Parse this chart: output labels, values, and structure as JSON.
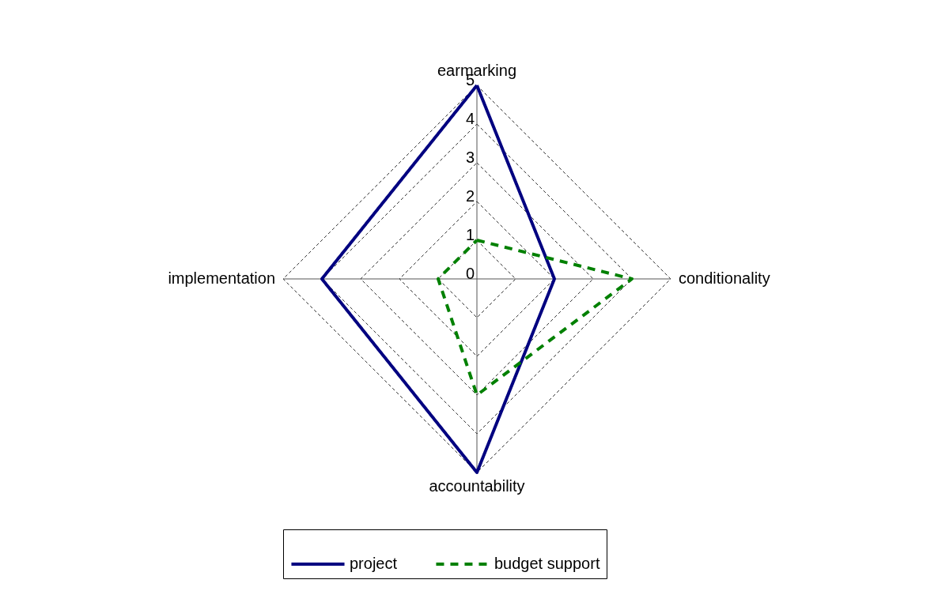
{
  "chart_data": {
    "type": "radar",
    "categories": [
      "earmarking",
      "conditionality",
      "accountability",
      "implementation"
    ],
    "ylim": [
      0,
      5
    ],
    "yticks": [
      0,
      1,
      2,
      3,
      4,
      5
    ],
    "grid": true,
    "legend": "bottom",
    "series": [
      {
        "name": "project",
        "color": "#000080",
        "values": [
          5,
          2,
          5,
          4
        ],
        "line_style": "solid"
      },
      {
        "name": "budget support",
        "color": "#008000",
        "values": [
          1,
          4,
          3,
          1
        ],
        "line_style": "dashed"
      }
    ]
  }
}
